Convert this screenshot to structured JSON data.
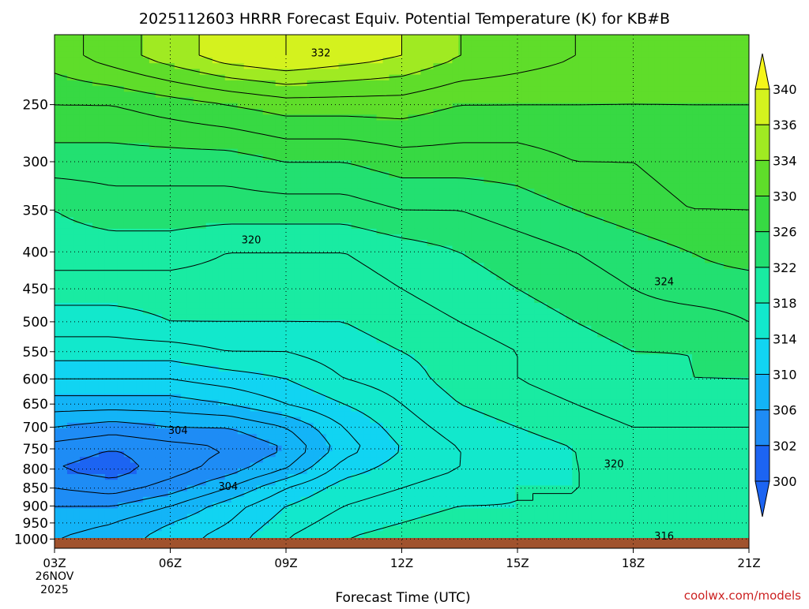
{
  "chart_data": {
    "type": "heatmap",
    "title": "2025112603 HRRR Forecast Equiv. Potential Temperature (K) for KB#B",
    "xlabel": "Forecast Time (UTC)",
    "ylabel": "",
    "x_ticks": [
      "03Z",
      "06Z",
      "09Z",
      "12Z",
      "15Z",
      "18Z",
      "21Z"
    ],
    "x_start_date": [
      "26NOV",
      "2025"
    ],
    "y_ticks": [
      250,
      300,
      350,
      400,
      450,
      500,
      550,
      600,
      650,
      700,
      750,
      800,
      850,
      900,
      950,
      1000
    ],
    "y_axis": {
      "scale": "log",
      "range": [
        1030,
        200
      ]
    },
    "x_range": [
      3,
      21
    ],
    "grid": true,
    "colorbar": {
      "levels": [
        300,
        302,
        306,
        310,
        314,
        318,
        322,
        326,
        330,
        334,
        336,
        340
      ],
      "labels": [
        "340",
        "336",
        "334",
        "330",
        "326",
        "322",
        "318",
        "314",
        "310",
        "306",
        "302",
        "300"
      ],
      "colors": [
        "#1c64f2",
        "#1e8cf5",
        "#13b4f7",
        "#11d4f2",
        "#12e8cc",
        "#19eba2",
        "#22e071",
        "#37d943",
        "#5fdd2a",
        "#a0ea22",
        "#d4f21e",
        "#f5f51a"
      ]
    },
    "contour_labels": [
      {
        "text": "332",
        "x": 9.9,
        "y": 212
      },
      {
        "text": "320",
        "x": 8.1,
        "y": 385
      },
      {
        "text": "324",
        "x": 18.8,
        "y": 440
      },
      {
        "text": "304",
        "x": 6.2,
        "y": 707
      },
      {
        "text": "304",
        "x": 7.5,
        "y": 845
      },
      {
        "text": "320",
        "x": 17.5,
        "y": 787
      },
      {
        "text": "316",
        "x": 18.8,
        "y": 990
      }
    ],
    "series": [
      {
        "x": [
          3,
          4.5,
          6,
          7.5,
          9,
          10.5,
          12,
          13.5,
          15,
          16.5,
          18,
          19.5,
          21
        ],
        "y_levels": [
          1000,
          950,
          900,
          850,
          800,
          750,
          700,
          650,
          600,
          550,
          500,
          450,
          400,
          350,
          300,
          250,
          215
        ],
        "z": [
          [
            308,
            309,
            311,
            313,
            316,
            318,
            319,
            320,
            320,
            320,
            319,
            318,
            318
          ],
          [
            307,
            308,
            310,
            312,
            315,
            317,
            318,
            319,
            319,
            319,
            318,
            318,
            318
          ],
          [
            306,
            306,
            308,
            311,
            314,
            316,
            317,
            318,
            318,
            318,
            318,
            318,
            318
          ],
          [
            304,
            303,
            305,
            308,
            312,
            315,
            316,
            317,
            318,
            318,
            318,
            318,
            318
          ],
          [
            302,
            301,
            303,
            305,
            308,
            313,
            315,
            316,
            317,
            318,
            318,
            318,
            318
          ],
          [
            303,
            302,
            303,
            304,
            306,
            311,
            314,
            316,
            317,
            318,
            319,
            319,
            319
          ],
          [
            306,
            305,
            306,
            306,
            308,
            312,
            315,
            317,
            318,
            319,
            320,
            320,
            320
          ],
          [
            309,
            309,
            309,
            310,
            312,
            314,
            316,
            318,
            319,
            320,
            321,
            321,
            321
          ],
          [
            312,
            312,
            312,
            313,
            314,
            316,
            317,
            319,
            320,
            321,
            321,
            322,
            322
          ],
          [
            315,
            315,
            315,
            316,
            316,
            317,
            318,
            319,
            320,
            321,
            322,
            322,
            323
          ],
          [
            317,
            317,
            318,
            318,
            318,
            318,
            319,
            320,
            321,
            322,
            323,
            323,
            324
          ],
          [
            319,
            319,
            319,
            319,
            319,
            319,
            320,
            321,
            322,
            323,
            324,
            325,
            325
          ],
          [
            321,
            321,
            321,
            320,
            320,
            320,
            321,
            322,
            323,
            324,
            325,
            326,
            327
          ],
          [
            322,
            323,
            323,
            323,
            323,
            323,
            324,
            324,
            325,
            326,
            327,
            328,
            328
          ],
          [
            325,
            325,
            325,
            325,
            326,
            326,
            327,
            327,
            327,
            328,
            328,
            329,
            329
          ],
          [
            328,
            328,
            329,
            330,
            331,
            331,
            331,
            330,
            330,
            330,
            330,
            330,
            330
          ],
          [
            331,
            333,
            335,
            337,
            338,
            337,
            336,
            334,
            333,
            332,
            331,
            331,
            331
          ]
        ]
      }
    ],
    "watermark": "coolwx.com/models"
  }
}
